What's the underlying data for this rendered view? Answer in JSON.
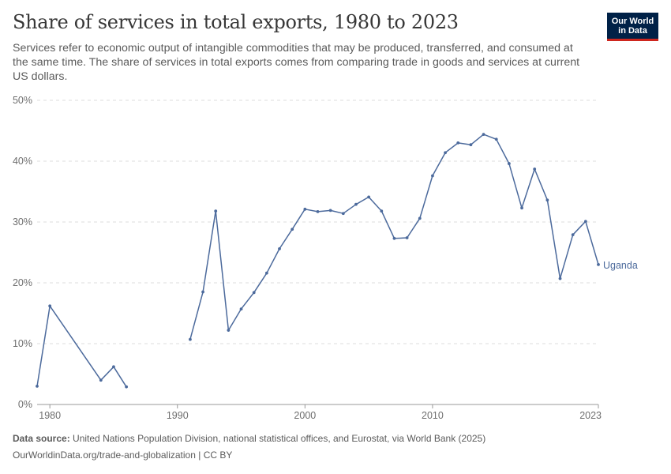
{
  "header": {
    "title": "Share of services in total exports, 1980 to 2023",
    "subtitle": "Services refer to economic output of intangible commodities that may be produced, transferred, and consumed at the same time. The share of services in total exports comes from comparing trade in goods and services at current US dollars.",
    "logo_line1": "Our World",
    "logo_line2": "in Data",
    "logo_color": "#002147",
    "logo_accent": "#ce261e"
  },
  "footer": {
    "source_label": "Data source:",
    "source_text": "United Nations Population Division, national statistical offices, and Eurostat, via World Bank (2025)",
    "url_text": "OurWorldinData.org/trade-and-globalization | CC BY"
  },
  "chart_data": {
    "type": "line",
    "title": "Share of services in total exports, 1980 to 2023",
    "xlabel": "",
    "ylabel": "",
    "xlim": [
      1979,
      2023
    ],
    "ylim": [
      0,
      50
    ],
    "y_ticks": [
      0,
      10,
      20,
      30,
      40,
      50
    ],
    "y_tick_labels": [
      "0%",
      "10%",
      "20%",
      "30%",
      "40%",
      "50%"
    ],
    "x_ticks": [
      1980,
      1990,
      2000,
      2010,
      2023
    ],
    "x_tick_labels": [
      "1980",
      "1990",
      "2000",
      "2010",
      "2023"
    ],
    "grid": "horizontal dashed",
    "legend": "end-of-line label",
    "series": [
      {
        "name": "Uganda",
        "color": "#4c6a9c",
        "segments": [
          [
            [
              1979,
              3.0
            ],
            [
              1980,
              16.2
            ],
            [
              1984,
              4.0
            ],
            [
              1985,
              6.2
            ],
            [
              1986,
              2.9
            ]
          ],
          [
            [
              1991,
              10.7
            ],
            [
              1992,
              18.5
            ],
            [
              1993,
              31.8
            ],
            [
              1994,
              12.2
            ],
            [
              1995,
              15.7
            ],
            [
              1996,
              18.4
            ],
            [
              1997,
              21.6
            ],
            [
              1998,
              25.6
            ],
            [
              1999,
              28.8
            ],
            [
              2000,
              32.1
            ],
            [
              2001,
              31.7
            ],
            [
              2002,
              31.9
            ],
            [
              2003,
              31.4
            ],
            [
              2004,
              32.9
            ],
            [
              2005,
              34.1
            ],
            [
              2006,
              31.8
            ],
            [
              2007,
              27.3
            ],
            [
              2008,
              27.4
            ],
            [
              2009,
              30.6
            ],
            [
              2010,
              37.6
            ],
            [
              2011,
              41.4
            ],
            [
              2012,
              43.0
            ],
            [
              2013,
              42.7
            ],
            [
              2014,
              44.4
            ],
            [
              2015,
              43.6
            ],
            [
              2016,
              39.6
            ],
            [
              2017,
              32.3
            ],
            [
              2018,
              38.7
            ],
            [
              2019,
              33.6
            ],
            [
              2020,
              20.7
            ],
            [
              2021,
              27.9
            ],
            [
              2022,
              30.1
            ],
            [
              2023,
              23.0
            ]
          ]
        ]
      }
    ]
  }
}
